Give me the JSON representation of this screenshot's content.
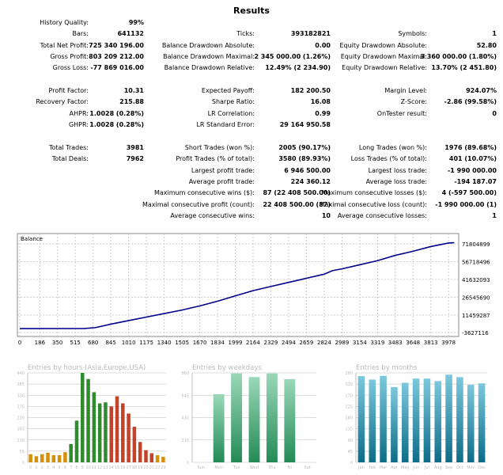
{
  "title": "Results",
  "rows": [
    {
      "y": 0,
      "cells": [
        [
          "History Quality:",
          "99%"
        ]
      ]
    },
    {
      "y": 1,
      "cells": [
        [
          "Bars:",
          "641132"
        ],
        [
          "Ticks:",
          "393182821"
        ],
        [
          "Symbols:",
          "1"
        ]
      ]
    },
    {
      "y": 2,
      "cells": [
        [
          "Total Net Profit:",
          "725 340 196.00"
        ],
        [
          "Balance Drawdown Absolute:",
          "0.00"
        ],
        [
          "Equity Drawdown Absolute:",
          "52.80"
        ]
      ]
    },
    {
      "y": 3,
      "cells": [
        [
          "Gross Profit:",
          "803 209 212.00"
        ],
        [
          "Balance Drawdown Maximal:",
          "2 345 000.00 (1.26%)"
        ],
        [
          "Equity Drawdown Maximal:",
          "3 360 000.00 (1.80%)"
        ]
      ]
    },
    {
      "y": 4,
      "cells": [
        [
          "Gross Loss:",
          "-77 869 016.00"
        ],
        [
          "Balance Drawdown Relative:",
          "12.49% (2 234.90)"
        ],
        [
          "Equity Drawdown Relative:",
          "13.70% (2 451.80)"
        ]
      ]
    },
    {
      "y": 6,
      "cells": [
        [
          "Profit Factor:",
          "10.31"
        ],
        [
          "Expected Payoff:",
          "182 200.50"
        ],
        [
          "Margin Level:",
          "924.07%"
        ]
      ]
    },
    {
      "y": 7,
      "cells": [
        [
          "Recovery Factor:",
          "215.88"
        ],
        [
          "Sharpe Ratio:",
          "16.08"
        ],
        [
          "Z-Score:",
          "-2.86 (99.58%)"
        ]
      ]
    },
    {
      "y": 8,
      "cells": [
        [
          "AHPR:",
          "1.0028 (0.28%)"
        ],
        [
          "LR Correlation:",
          "0.99"
        ],
        [
          "OnTester result:",
          "0"
        ]
      ]
    },
    {
      "y": 9,
      "cells": [
        [
          "GHPR:",
          "1.0028 (0.28%)"
        ],
        [
          "LR Standard Error:",
          "29 164 950.58"
        ]
      ]
    },
    {
      "y": 11,
      "cells": [
        [
          "Total Trades:",
          "3981"
        ],
        [
          "Short Trades (won %):",
          "2005 (90.17%)"
        ],
        [
          "Long Trades (won %):",
          "1976 (89.68%)"
        ]
      ]
    },
    {
      "y": 12,
      "cells": [
        [
          "Total Deals:",
          "7962"
        ],
        [
          "Profit Trades (% of total):",
          "3580 (89.93%)"
        ],
        [
          "Loss Trades (% of total):",
          "401 (10.07%)"
        ]
      ]
    },
    {
      "y": 13,
      "cells": [
        null,
        [
          "Largest profit trade:",
          "6 946 500.00"
        ],
        [
          "Largest loss trade:",
          "-1 990 000.00"
        ]
      ]
    },
    {
      "y": 14,
      "cells": [
        null,
        [
          "Average profit trade:",
          "224 360.12"
        ],
        [
          "Average loss trade:",
          "-194 187.07"
        ]
      ]
    },
    {
      "y": 15,
      "cells": [
        null,
        [
          "Maximum consecutive wins ($):",
          "87 (22 408 500.00)"
        ],
        [
          "Maximum consecutive losses ($):",
          "4 (-597 500.00)"
        ]
      ]
    },
    {
      "y": 16,
      "cells": [
        null,
        [
          "Maximal consecutive profit (count):",
          "22 408 500.00 (87)"
        ],
        [
          "Maximal consecutive loss (count):",
          "-1 990 000.00 (1)"
        ]
      ]
    },
    {
      "y": 17,
      "cells": [
        null,
        [
          "Average consecutive wins:",
          "10"
        ],
        [
          "Average consecutive losses:",
          "1"
        ]
      ]
    }
  ],
  "chart_data": [
    {
      "type": "line",
      "title": "Balance",
      "line_color": "#00008b",
      "grid": true,
      "x_ticks": [
        0,
        186,
        350,
        515,
        680,
        845,
        1010,
        1175,
        1340,
        1505,
        1670,
        1834,
        1999,
        2164,
        2329,
        2494,
        2659,
        2824,
        2989,
        3154,
        3319,
        3483,
        3648,
        3813,
        3978
      ],
      "y_ticks": [
        "71804899",
        "56718496",
        "41632093",
        "26545690",
        "11459287",
        "-3627116"
      ],
      "ylim": [
        -3627116,
        71804899
      ],
      "xlim": [
        0,
        4050
      ],
      "x": [
        0,
        600,
        700,
        845,
        1010,
        1175,
        1340,
        1505,
        1670,
        1834,
        1999,
        2164,
        2329,
        2494,
        2659,
        2824,
        2900,
        2989,
        3154,
        3319,
        3483,
        3648,
        3813,
        3978,
        4030
      ],
      "y": [
        -300000,
        -200000,
        500000,
        3500000,
        6500000,
        9500000,
        12500000,
        15500000,
        19000000,
        23000000,
        27500000,
        32000000,
        35500000,
        39000000,
        42500000,
        46000000,
        49000000,
        50500000,
        54000000,
        57500000,
        62000000,
        65500000,
        69500000,
        72500000,
        72800000
      ]
    },
    {
      "type": "bar",
      "title": "Entries by hours (Asia,Europe,USA)",
      "categories": [
        "0",
        "1",
        "2",
        "3",
        "4",
        "5",
        "6",
        "7",
        "8",
        "9",
        "10",
        "11",
        "12",
        "13",
        "14",
        "15",
        "16",
        "17",
        "18",
        "19",
        "20",
        "21",
        "22",
        "23"
      ],
      "values": [
        40,
        30,
        40,
        47,
        35,
        35,
        50,
        90,
        205,
        440,
        410,
        345,
        290,
        295,
        275,
        325,
        290,
        240,
        175,
        100,
        60,
        45,
        35,
        27
      ],
      "y_ticks": [
        0,
        55,
        110,
        165,
        220,
        275,
        330,
        385,
        440
      ],
      "ylim": [
        0,
        440
      ],
      "colors": {
        "asia": "#d4900a",
        "europe": "#2e8b2e",
        "usa": "#c0432a"
      }
    },
    {
      "type": "bar",
      "title": "Entries by weekdays",
      "categories": [
        "Sun",
        "Mon",
        "Tue",
        "Wed",
        "Thu",
        "Fri",
        "Sat"
      ],
      "values": [
        0,
        655,
        855,
        820,
        855,
        800,
        0
      ],
      "y_ticks": [
        0,
        215,
        430,
        645,
        860
      ],
      "ylim": [
        0,
        860
      ],
      "colors": {
        "bar": "#3a9e6a"
      }
    },
    {
      "type": "bar",
      "title": "Entries by months",
      "categories": [
        "Jan",
        "Feb",
        "Mar",
        "Apr",
        "May",
        "Jun",
        "Jul",
        "Aug",
        "Sep",
        "Oct",
        "Nov",
        "Dec"
      ],
      "values": [
        347,
        333,
        348,
        303,
        320,
        337,
        337,
        327,
        353,
        343,
        312,
        318
      ],
      "y_ticks": [
        0,
        45,
        90,
        135,
        180,
        225,
        270,
        315,
        360
      ],
      "ylim": [
        0,
        360
      ],
      "colors": {
        "bar": "#2a8ea8"
      }
    }
  ]
}
